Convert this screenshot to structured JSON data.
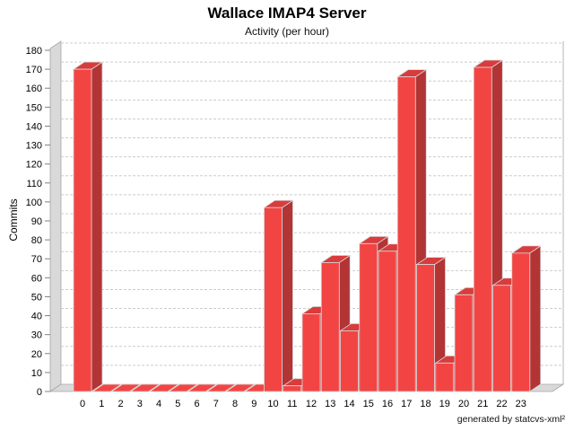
{
  "credit": "generated by statcvs-xml²",
  "chart_data": {
    "type": "bar",
    "style": "3d-bar",
    "title": "Wallace IMAP4 Server",
    "subtitle": "Activity (per hour)",
    "xlabel": "",
    "ylabel": "Commits",
    "categories": [
      "0",
      "1",
      "2",
      "3",
      "4",
      "5",
      "6",
      "7",
      "8",
      "9",
      "10",
      "11",
      "12",
      "13",
      "14",
      "15",
      "16",
      "17",
      "18",
      "19",
      "20",
      "21",
      "22",
      "23"
    ],
    "values": [
      170,
      0,
      0,
      0,
      0,
      0,
      0,
      0,
      0,
      0,
      97,
      3,
      41,
      68,
      32,
      78,
      74,
      166,
      67,
      15,
      51,
      171,
      56,
      73
    ],
    "ylim": [
      0,
      180
    ],
    "ytick_step": 10,
    "grid": true,
    "legend": false,
    "colors": {
      "bar_front": "#f34444",
      "bar_top": "#d83c3c",
      "bar_side": "#b23434",
      "bar_outline": "#d9d9d9",
      "wall": "#d9d9d9",
      "wall_outline": "#a6a6a6",
      "gridline": "#cccccc",
      "plot_border": "#b6b6b6",
      "tick": "#808080",
      "text": "#000000"
    }
  }
}
